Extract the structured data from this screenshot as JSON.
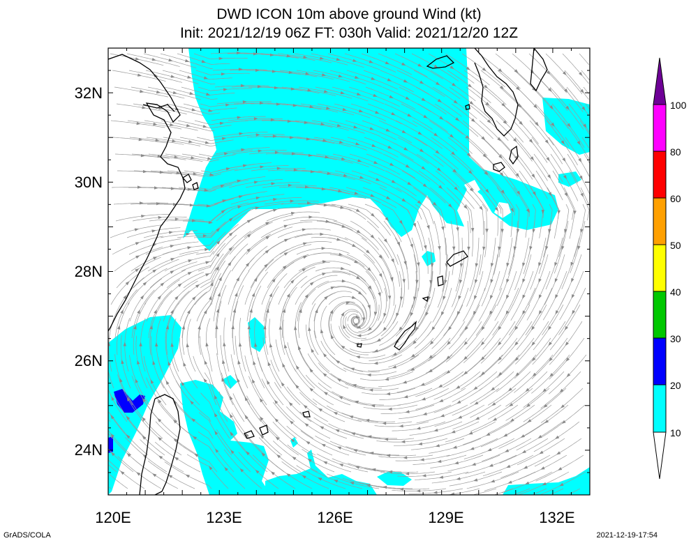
{
  "header": {
    "title_line1": "DWD ICON 10m above ground Wind (kt)",
    "title_line2": "Init: 2021/12/19 06Z  FT: 030h  Valid: 2021/12/20 12Z"
  },
  "map": {
    "lon_range": [
      120,
      133
    ],
    "lat_range": [
      23,
      33
    ],
    "x_ticks": [
      "120E",
      "123E",
      "126E",
      "129E",
      "132E"
    ],
    "y_ticks": [
      "32N",
      "30N",
      "28N",
      "26N",
      "24N"
    ]
  },
  "colorbar": {
    "labels": [
      "10",
      "20",
      "30",
      "40",
      "50",
      "60",
      "80",
      "100"
    ],
    "colors": [
      "#00ffff",
      "#0000ff",
      "#00c800",
      "#ffff00",
      "#ffa000",
      "#ff0000",
      "#ff00ff",
      "#6e0096"
    ]
  },
  "footer": {
    "left": "GrADS/COLA",
    "right": "2021-12-19-17:54"
  }
}
